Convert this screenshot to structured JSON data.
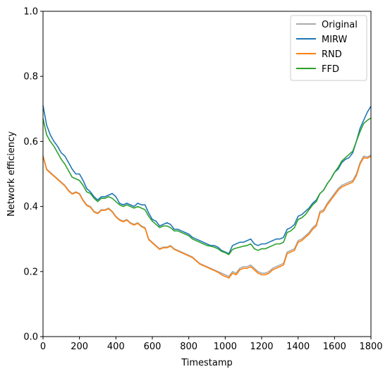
{
  "chart_data": {
    "type": "line",
    "xlabel": "Timestamp",
    "ylabel": "Network efficiency",
    "xlim": [
      0,
      1800
    ],
    "ylim": [
      0,
      1.0
    ],
    "xticks": [
      "0",
      "200",
      "400",
      "600",
      "800",
      "1000",
      "1200",
      "1400",
      "1600",
      "1800"
    ],
    "yticks": [
      "0.0",
      "0.2",
      "0.4",
      "0.6",
      "0.8",
      "1.0"
    ],
    "grid": false,
    "legend_position": "top-right",
    "series": [
      {
        "name": "Original",
        "color": "#aaaaaa",
        "x": [
          0,
          20,
          40,
          60,
          80,
          100,
          120,
          140,
          160,
          180,
          200,
          220,
          240,
          260,
          280,
          300,
          320,
          340,
          360,
          380,
          400,
          420,
          440,
          460,
          480,
          500,
          520,
          540,
          560,
          580,
          600,
          620,
          640,
          660,
          680,
          700,
          720,
          740,
          760,
          780,
          800,
          820,
          840,
          860,
          880,
          900,
          920,
          940,
          960,
          980,
          1000,
          1020,
          1040,
          1060,
          1080,
          1100,
          1120,
          1140,
          1160,
          1180,
          1200,
          1220,
          1240,
          1260,
          1280,
          1300,
          1320,
          1340,
          1360,
          1380,
          1400,
          1420,
          1440,
          1460,
          1480,
          1500,
          1520,
          1540,
          1560,
          1580,
          1600,
          1620,
          1640,
          1660,
          1680,
          1700,
          1720,
          1740,
          1760,
          1780,
          1800
        ],
        "y": [
          0.556,
          0.515,
          0.505,
          0.495,
          0.485,
          0.475,
          0.465,
          0.45,
          0.44,
          0.445,
          0.44,
          0.42,
          0.405,
          0.4,
          0.385,
          0.38,
          0.39,
          0.39,
          0.395,
          0.385,
          0.37,
          0.36,
          0.355,
          0.36,
          0.35,
          0.345,
          0.35,
          0.34,
          0.335,
          0.3,
          0.29,
          0.28,
          0.27,
          0.275,
          0.275,
          0.28,
          0.27,
          0.265,
          0.26,
          0.255,
          0.25,
          0.245,
          0.235,
          0.225,
          0.22,
          0.215,
          0.21,
          0.205,
          0.2,
          0.195,
          0.19,
          0.185,
          0.2,
          0.195,
          0.21,
          0.215,
          0.215,
          0.22,
          0.21,
          0.2,
          0.195,
          0.195,
          0.2,
          0.21,
          0.215,
          0.22,
          0.225,
          0.26,
          0.265,
          0.27,
          0.295,
          0.3,
          0.31,
          0.32,
          0.335,
          0.345,
          0.385,
          0.39,
          0.41,
          0.425,
          0.44,
          0.455,
          0.465,
          0.47,
          0.475,
          0.48,
          0.5,
          0.535,
          0.555,
          0.552,
          0.558
        ]
      },
      {
        "name": "MIRW",
        "color": "#1f77b4",
        "x": [
          0,
          20,
          40,
          60,
          80,
          100,
          120,
          140,
          160,
          180,
          200,
          220,
          240,
          260,
          280,
          300,
          320,
          340,
          360,
          380,
          400,
          420,
          440,
          460,
          480,
          500,
          520,
          540,
          560,
          580,
          600,
          620,
          640,
          660,
          680,
          700,
          720,
          740,
          760,
          780,
          800,
          820,
          840,
          860,
          880,
          900,
          920,
          940,
          960,
          980,
          1000,
          1020,
          1040,
          1060,
          1080,
          1100,
          1120,
          1140,
          1160,
          1180,
          1200,
          1220,
          1240,
          1260,
          1280,
          1300,
          1320,
          1340,
          1360,
          1380,
          1400,
          1420,
          1440,
          1460,
          1480,
          1500,
          1520,
          1540,
          1560,
          1580,
          1600,
          1620,
          1640,
          1660,
          1680,
          1700,
          1720,
          1740,
          1760,
          1780,
          1800
        ],
        "y": [
          0.71,
          0.65,
          0.62,
          0.6,
          0.585,
          0.565,
          0.555,
          0.535,
          0.515,
          0.5,
          0.5,
          0.48,
          0.455,
          0.445,
          0.43,
          0.42,
          0.43,
          0.43,
          0.435,
          0.44,
          0.43,
          0.41,
          0.405,
          0.41,
          0.405,
          0.4,
          0.41,
          0.405,
          0.405,
          0.38,
          0.36,
          0.355,
          0.34,
          0.345,
          0.35,
          0.345,
          0.33,
          0.33,
          0.325,
          0.32,
          0.315,
          0.305,
          0.3,
          0.295,
          0.29,
          0.285,
          0.28,
          0.28,
          0.275,
          0.265,
          0.26,
          0.255,
          0.28,
          0.285,
          0.29,
          0.29,
          0.295,
          0.3,
          0.285,
          0.28,
          0.285,
          0.285,
          0.29,
          0.295,
          0.3,
          0.3,
          0.305,
          0.33,
          0.335,
          0.345,
          0.37,
          0.375,
          0.385,
          0.395,
          0.41,
          0.42,
          0.44,
          0.45,
          0.47,
          0.485,
          0.505,
          0.515,
          0.535,
          0.545,
          0.55,
          0.565,
          0.6,
          0.64,
          0.665,
          0.69,
          0.708
        ]
      },
      {
        "name": "RND",
        "color": "#ff7f0e",
        "x": [
          0,
          20,
          40,
          60,
          80,
          100,
          120,
          140,
          160,
          180,
          200,
          220,
          240,
          260,
          280,
          300,
          320,
          340,
          360,
          380,
          400,
          420,
          440,
          460,
          480,
          500,
          520,
          540,
          560,
          580,
          600,
          620,
          640,
          660,
          680,
          700,
          720,
          740,
          760,
          780,
          800,
          820,
          840,
          860,
          880,
          900,
          920,
          940,
          960,
          980,
          1000,
          1020,
          1040,
          1060,
          1080,
          1100,
          1120,
          1140,
          1160,
          1180,
          1200,
          1220,
          1240,
          1260,
          1280,
          1300,
          1320,
          1340,
          1360,
          1380,
          1400,
          1420,
          1440,
          1460,
          1480,
          1500,
          1520,
          1540,
          1560,
          1580,
          1600,
          1620,
          1640,
          1660,
          1680,
          1700,
          1720,
          1740,
          1760,
          1780,
          1800
        ],
        "y": [
          0.555,
          0.513,
          0.503,
          0.493,
          0.483,
          0.473,
          0.463,
          0.448,
          0.438,
          0.443,
          0.438,
          0.418,
          0.403,
          0.398,
          0.383,
          0.378,
          0.388,
          0.388,
          0.393,
          0.383,
          0.368,
          0.358,
          0.353,
          0.358,
          0.348,
          0.343,
          0.348,
          0.338,
          0.333,
          0.298,
          0.288,
          0.278,
          0.268,
          0.273,
          0.273,
          0.278,
          0.268,
          0.263,
          0.258,
          0.253,
          0.248,
          0.243,
          0.233,
          0.223,
          0.218,
          0.213,
          0.208,
          0.203,
          0.198,
          0.19,
          0.185,
          0.18,
          0.195,
          0.19,
          0.205,
          0.21,
          0.21,
          0.215,
          0.205,
          0.195,
          0.19,
          0.19,
          0.195,
          0.205,
          0.21,
          0.215,
          0.22,
          0.255,
          0.26,
          0.265,
          0.29,
          0.295,
          0.305,
          0.315,
          0.33,
          0.34,
          0.38,
          0.385,
          0.405,
          0.42,
          0.435,
          0.45,
          0.46,
          0.465,
          0.47,
          0.475,
          0.495,
          0.53,
          0.55,
          0.548,
          0.555
        ]
      },
      {
        "name": "FFD",
        "color": "#2ca02c",
        "x": [
          0,
          20,
          40,
          60,
          80,
          100,
          120,
          140,
          160,
          180,
          200,
          220,
          240,
          260,
          280,
          300,
          320,
          340,
          360,
          380,
          400,
          420,
          440,
          460,
          480,
          500,
          520,
          540,
          560,
          580,
          600,
          620,
          640,
          660,
          680,
          700,
          720,
          740,
          760,
          780,
          800,
          820,
          840,
          860,
          880,
          900,
          920,
          940,
          960,
          980,
          1000,
          1020,
          1040,
          1060,
          1080,
          1100,
          1120,
          1140,
          1160,
          1180,
          1200,
          1220,
          1240,
          1260,
          1280,
          1300,
          1320,
          1340,
          1360,
          1380,
          1400,
          1420,
          1440,
          1460,
          1480,
          1500,
          1520,
          1540,
          1560,
          1580,
          1600,
          1620,
          1640,
          1660,
          1680,
          1700,
          1720,
          1740,
          1760,
          1780,
          1800
        ],
        "y": [
          0.67,
          0.62,
          0.6,
          0.585,
          0.565,
          0.545,
          0.53,
          0.51,
          0.49,
          0.485,
          0.48,
          0.465,
          0.445,
          0.44,
          0.425,
          0.415,
          0.425,
          0.425,
          0.43,
          0.425,
          0.415,
          0.405,
          0.4,
          0.405,
          0.4,
          0.395,
          0.4,
          0.395,
          0.39,
          0.37,
          0.355,
          0.345,
          0.335,
          0.34,
          0.34,
          0.335,
          0.325,
          0.325,
          0.32,
          0.315,
          0.31,
          0.3,
          0.295,
          0.29,
          0.285,
          0.28,
          0.278,
          0.275,
          0.27,
          0.262,
          0.258,
          0.252,
          0.268,
          0.272,
          0.275,
          0.278,
          0.28,
          0.285,
          0.27,
          0.265,
          0.27,
          0.27,
          0.275,
          0.28,
          0.285,
          0.285,
          0.29,
          0.32,
          0.325,
          0.335,
          0.36,
          0.365,
          0.375,
          0.39,
          0.405,
          0.415,
          0.44,
          0.45,
          0.47,
          0.485,
          0.505,
          0.52,
          0.54,
          0.55,
          0.56,
          0.57,
          0.6,
          0.63,
          0.655,
          0.665,
          0.672
        ]
      }
    ]
  }
}
